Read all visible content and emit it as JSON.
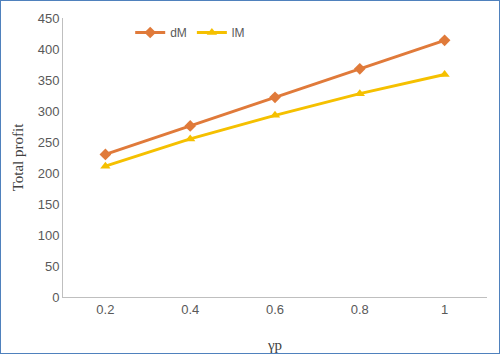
{
  "chart_data": {
    "type": "line",
    "x_label": "γp",
    "y_label": "Total profit",
    "categories": [
      "0.2",
      "0.4",
      "0.6",
      "0.8",
      "1"
    ],
    "series": [
      {
        "name": "dM",
        "color": "#e07a3a",
        "marker": "diamond",
        "values": [
          230,
          276,
          322,
          368,
          414
        ]
      },
      {
        "name": "lM",
        "color": "#f5c000",
        "marker": "triangle-up",
        "values": [
          211,
          255,
          293,
          328,
          359
        ]
      }
    ],
    "ylim": [
      0,
      450
    ],
    "yticks": [
      0,
      50,
      100,
      150,
      200,
      250,
      300,
      350,
      400,
      450
    ],
    "grid": false,
    "legend": "top"
  }
}
